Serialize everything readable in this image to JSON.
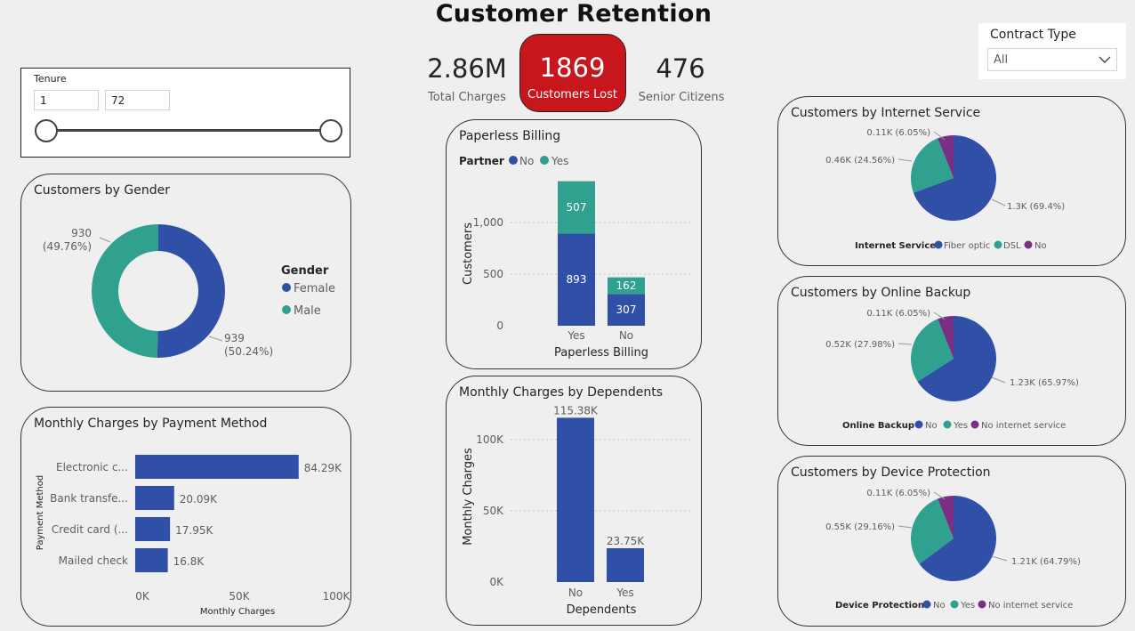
{
  "title": "Customer Retention",
  "kpis": {
    "total_charges": {
      "value": "2.86M",
      "label": "Total Charges"
    },
    "customers_lost": {
      "value": "1869",
      "label": "Customers Lost"
    },
    "senior_citizens": {
      "value": "476",
      "label": "Senior Citizens"
    }
  },
  "tenure_slicer": {
    "label": "Tenure",
    "min": "1",
    "max": "72"
  },
  "contract_slicer": {
    "label": "Contract Type",
    "selected": "All"
  },
  "colors": {
    "blue": "#3050a8",
    "teal": "#2fa18e",
    "purple": "#7a2f85",
    "red": "#c8161d"
  },
  "chart_data": [
    {
      "id": "gender",
      "type": "pie",
      "title": "Customers by Gender",
      "legend_title": "Gender",
      "categories": [
        "Female",
        "Male"
      ],
      "values": [
        939,
        930
      ],
      "labels": [
        [
          "939",
          "(50.24%)"
        ],
        [
          "930",
          "(49.76%)"
        ]
      ],
      "donut": true
    },
    {
      "id": "payment",
      "type": "bar",
      "orientation": "horizontal",
      "title": "Monthly Charges by Payment Method",
      "categories": [
        "Electronic c...",
        "Bank transfe...",
        "Credit card (...",
        "Mailed check"
      ],
      "values": [
        84290,
        20090,
        17950,
        16800
      ],
      "data_labels": [
        "84.29K",
        "20.09K",
        "17.95K",
        "16.8K"
      ],
      "xlabel": "Monthly Charges",
      "ylabel": "Payment Method",
      "xlim": [
        0,
        100000
      ],
      "ticks": [
        "0K",
        "50K",
        "100K"
      ]
    },
    {
      "id": "paperless",
      "type": "bar",
      "stacked": true,
      "title": "Paperless Billing",
      "legend_title": "Partner",
      "categories": [
        "Yes",
        "No"
      ],
      "series": [
        {
          "name": "No",
          "values": [
            893,
            307
          ]
        },
        {
          "name": "Yes",
          "values": [
            507,
            162
          ]
        }
      ],
      "xlabel": "Paperless Billing",
      "ylabel": "Customers",
      "ylim": [
        0,
        1400
      ],
      "ticks": [
        "0",
        "500",
        "1,000"
      ]
    },
    {
      "id": "dependents",
      "type": "bar",
      "title": "Monthly Charges by Dependents",
      "categories": [
        "No",
        "Yes"
      ],
      "values": [
        115380,
        23750
      ],
      "data_labels": [
        "115.38K",
        "23.75K"
      ],
      "xlabel": "Dependents",
      "ylabel": "Monthly Charges",
      "ylim": [
        0,
        118000
      ],
      "ticks": [
        "0K",
        "50K",
        "100K"
      ]
    },
    {
      "id": "internet",
      "type": "pie",
      "title": "Customers by Internet Service",
      "legend_title": "Internet Service",
      "categories": [
        "Fiber optic",
        "DSL",
        "No"
      ],
      "values": [
        69.4,
        24.56,
        6.05
      ],
      "labels": [
        "1.3K (69.4%)",
        "0.46K (24.56%)",
        "0.11K (6.05%)"
      ]
    },
    {
      "id": "backup",
      "type": "pie",
      "title": "Customers by Online Backup",
      "legend_title": "Online Backup",
      "categories": [
        "No",
        "Yes",
        "No internet service"
      ],
      "values": [
        65.97,
        27.98,
        6.05
      ],
      "labels": [
        "1.23K (65.97%)",
        "0.52K (27.98%)",
        "0.11K (6.05%)"
      ]
    },
    {
      "id": "device",
      "type": "pie",
      "title": "Customers by Device Protection",
      "legend_title": "Device Protection",
      "categories": [
        "No",
        "Yes",
        "No internet service"
      ],
      "values": [
        64.79,
        29.16,
        6.05
      ],
      "labels": [
        "1.21K (64.79%)",
        "0.55K (29.16%)",
        "0.11K (6.05%)"
      ]
    }
  ]
}
